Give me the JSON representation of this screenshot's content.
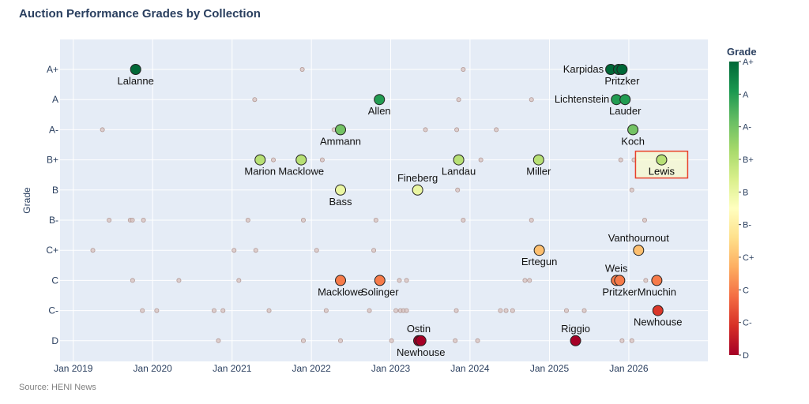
{
  "title": "Auction Performance Grades by Collection",
  "source": "Source: HENI News",
  "colors": {
    "plot_bg": "#e5ecf6",
    "grid": "#ffffff",
    "text": "#2a3f5f",
    "highlight": "#e8412a",
    "background_dot_fill": "#d9c6c3",
    "background_dot_stroke": "#b39a96"
  },
  "chart_data": {
    "type": "scatter",
    "xlabel": "",
    "ylabel": "Grade",
    "x_type": "date",
    "xlim": [
      "2018-11-01",
      "2026-12-31"
    ],
    "x_ticks": [
      {
        "date": "2019-01-01",
        "label": "Jan 2019"
      },
      {
        "date": "2020-01-01",
        "label": "Jan 2020"
      },
      {
        "date": "2021-01-01",
        "label": "Jan 2021"
      },
      {
        "date": "2022-01-01",
        "label": "Jan 2022"
      },
      {
        "date": "2023-01-01",
        "label": "Jan 2023"
      },
      {
        "date": "2024-01-01",
        "label": "Jan 2024"
      },
      {
        "date": "2025-01-01",
        "label": "Jan 2025"
      },
      {
        "date": "2026-01-01",
        "label": "Jan 2026"
      }
    ],
    "grades": [
      "D",
      "C-",
      "C",
      "C+",
      "B-",
      "B",
      "B+",
      "A-",
      "A",
      "A+"
    ],
    "colorbar": {
      "title": "Grade",
      "stops": [
        "#a50026",
        "#d73027",
        "#f46d43",
        "#fdae61",
        "#fee08b",
        "#ffffbf",
        "#d9ef8b",
        "#a6d96a",
        "#66bd63",
        "#1a9850",
        "#006837"
      ]
    },
    "highlight": {
      "label": "Lewis",
      "grade": "B+"
    },
    "labeled": [
      {
        "label": "Lalanne",
        "date": "2019-10-15",
        "grade": "A+",
        "pos": "below"
      },
      {
        "label": "Karpidas",
        "date": "2025-10-10",
        "grade": "A+",
        "pos": "left"
      },
      {
        "label": "",
        "date": "2025-11-15",
        "grade": "A+",
        "pos": "none"
      },
      {
        "label": "Pritzker",
        "date": "2025-12-01",
        "grade": "A+",
        "pos": "below"
      },
      {
        "label": "Allen",
        "date": "2022-11-10",
        "grade": "A",
        "pos": "below"
      },
      {
        "label": "Lichtenstein",
        "date": "2025-11-05",
        "grade": "A",
        "pos": "left"
      },
      {
        "label": "Lauder",
        "date": "2025-12-15",
        "grade": "A",
        "pos": "below"
      },
      {
        "label": "Ammann",
        "date": "2022-05-15",
        "grade": "A-",
        "pos": "below"
      },
      {
        "label": "Koch",
        "date": "2026-01-20",
        "grade": "A-",
        "pos": "below"
      },
      {
        "label": "Marion",
        "date": "2021-05-10",
        "grade": "B+",
        "pos": "below"
      },
      {
        "label": "Macklowe",
        "date": "2021-11-15",
        "grade": "B+",
        "pos": "below"
      },
      {
        "label": "Landau",
        "date": "2023-11-10",
        "grade": "B+",
        "pos": "below"
      },
      {
        "label": "Miller",
        "date": "2024-11-12",
        "grade": "B+",
        "pos": "below"
      },
      {
        "label": "Lewis",
        "date": "2026-06-01",
        "grade": "B+",
        "pos": "below"
      },
      {
        "label": "Bass",
        "date": "2022-05-15",
        "grade": "B",
        "pos": "below"
      },
      {
        "label": "Fineberg",
        "date": "2023-05-05",
        "grade": "B",
        "pos": "above"
      },
      {
        "label": "Ertegun",
        "date": "2024-11-15",
        "grade": "C+",
        "pos": "below"
      },
      {
        "label": "Vanthournout",
        "date": "2026-02-15",
        "grade": "C+",
        "pos": "above"
      },
      {
        "label": "Macklowe",
        "date": "2022-05-15",
        "grade": "C",
        "pos": "below"
      },
      {
        "label": "Solinger",
        "date": "2022-11-12",
        "grade": "C",
        "pos": "below"
      },
      {
        "label": "Weis",
        "date": "2025-11-05",
        "grade": "C",
        "pos": "above"
      },
      {
        "label": "Pritzker",
        "date": "2025-11-20",
        "grade": "C",
        "pos": "below"
      },
      {
        "label": "Mnuchin",
        "date": "2026-05-10",
        "grade": "C",
        "pos": "below"
      },
      {
        "label": "Newhouse",
        "date": "2026-05-15",
        "grade": "C-",
        "pos": "below"
      },
      {
        "label": "Ostin",
        "date": "2023-05-10",
        "grade": "D",
        "pos": "above"
      },
      {
        "label": "Newhouse",
        "date": "2023-05-20",
        "grade": "D",
        "pos": "below"
      },
      {
        "label": "Riggio",
        "date": "2025-05-01",
        "grade": "D",
        "pos": "above"
      }
    ],
    "background_points": [
      {
        "date": "2021-11-20",
        "grade": "A+"
      },
      {
        "date": "2023-12-01",
        "grade": "A+"
      },
      {
        "date": "2021-04-15",
        "grade": "A"
      },
      {
        "date": "2023-11-10",
        "grade": "A"
      },
      {
        "date": "2024-10-10",
        "grade": "A"
      },
      {
        "date": "2019-05-15",
        "grade": "A-"
      },
      {
        "date": "2022-04-15",
        "grade": "A-"
      },
      {
        "date": "2023-06-10",
        "grade": "A-"
      },
      {
        "date": "2023-11-01",
        "grade": "A-"
      },
      {
        "date": "2024-05-01",
        "grade": "A-"
      },
      {
        "date": "2021-07-10",
        "grade": "B+"
      },
      {
        "date": "2022-02-20",
        "grade": "B+"
      },
      {
        "date": "2024-02-20",
        "grade": "B+"
      },
      {
        "date": "2025-11-25",
        "grade": "B+"
      },
      {
        "date": "2026-01-25",
        "grade": "B+"
      },
      {
        "date": "2023-05-01",
        "grade": "B"
      },
      {
        "date": "2023-11-05",
        "grade": "B"
      },
      {
        "date": "2026-01-15",
        "grade": "B"
      },
      {
        "date": "2019-06-15",
        "grade": "B-"
      },
      {
        "date": "2019-09-20",
        "grade": "B-"
      },
      {
        "date": "2019-09-30",
        "grade": "B-"
      },
      {
        "date": "2019-11-20",
        "grade": "B-"
      },
      {
        "date": "2021-03-15",
        "grade": "B-"
      },
      {
        "date": "2021-11-25",
        "grade": "B-"
      },
      {
        "date": "2022-10-25",
        "grade": "B-"
      },
      {
        "date": "2023-12-01",
        "grade": "B-"
      },
      {
        "date": "2024-10-10",
        "grade": "B-"
      },
      {
        "date": "2026-03-15",
        "grade": "B-"
      },
      {
        "date": "2019-04-01",
        "grade": "C+"
      },
      {
        "date": "2021-01-10",
        "grade": "C+"
      },
      {
        "date": "2021-04-20",
        "grade": "C+"
      },
      {
        "date": "2022-01-25",
        "grade": "C+"
      },
      {
        "date": "2022-10-15",
        "grade": "C+"
      },
      {
        "date": "2019-10-01",
        "grade": "C"
      },
      {
        "date": "2020-05-01",
        "grade": "C"
      },
      {
        "date": "2021-02-01",
        "grade": "C"
      },
      {
        "date": "2023-02-10",
        "grade": "C"
      },
      {
        "date": "2023-03-15",
        "grade": "C"
      },
      {
        "date": "2024-09-10",
        "grade": "C"
      },
      {
        "date": "2024-10-01",
        "grade": "C"
      },
      {
        "date": "2025-11-10",
        "grade": "C"
      },
      {
        "date": "2026-03-20",
        "grade": "C"
      },
      {
        "date": "2019-11-15",
        "grade": "C-"
      },
      {
        "date": "2020-01-20",
        "grade": "C-"
      },
      {
        "date": "2020-10-10",
        "grade": "C-"
      },
      {
        "date": "2020-11-20",
        "grade": "C-"
      },
      {
        "date": "2021-06-20",
        "grade": "C-"
      },
      {
        "date": "2022-03-10",
        "grade": "C-"
      },
      {
        "date": "2022-09-25",
        "grade": "C-"
      },
      {
        "date": "2023-01-25",
        "grade": "C-"
      },
      {
        "date": "2023-02-15",
        "grade": "C-"
      },
      {
        "date": "2023-03-01",
        "grade": "C-"
      },
      {
        "date": "2023-03-15",
        "grade": "C-"
      },
      {
        "date": "2023-10-30",
        "grade": "C-"
      },
      {
        "date": "2024-05-20",
        "grade": "C-"
      },
      {
        "date": "2024-06-15",
        "grade": "C-"
      },
      {
        "date": "2024-07-15",
        "grade": "C-"
      },
      {
        "date": "2025-03-20",
        "grade": "C-"
      },
      {
        "date": "2025-06-10",
        "grade": "C-"
      },
      {
        "date": "2020-10-30",
        "grade": "D"
      },
      {
        "date": "2021-11-25",
        "grade": "D"
      },
      {
        "date": "2022-05-15",
        "grade": "D"
      },
      {
        "date": "2023-01-05",
        "grade": "D"
      },
      {
        "date": "2023-10-25",
        "grade": "D"
      },
      {
        "date": "2024-02-05",
        "grade": "D"
      },
      {
        "date": "2025-12-01",
        "grade": "D"
      },
      {
        "date": "2026-01-15",
        "grade": "D"
      }
    ]
  }
}
